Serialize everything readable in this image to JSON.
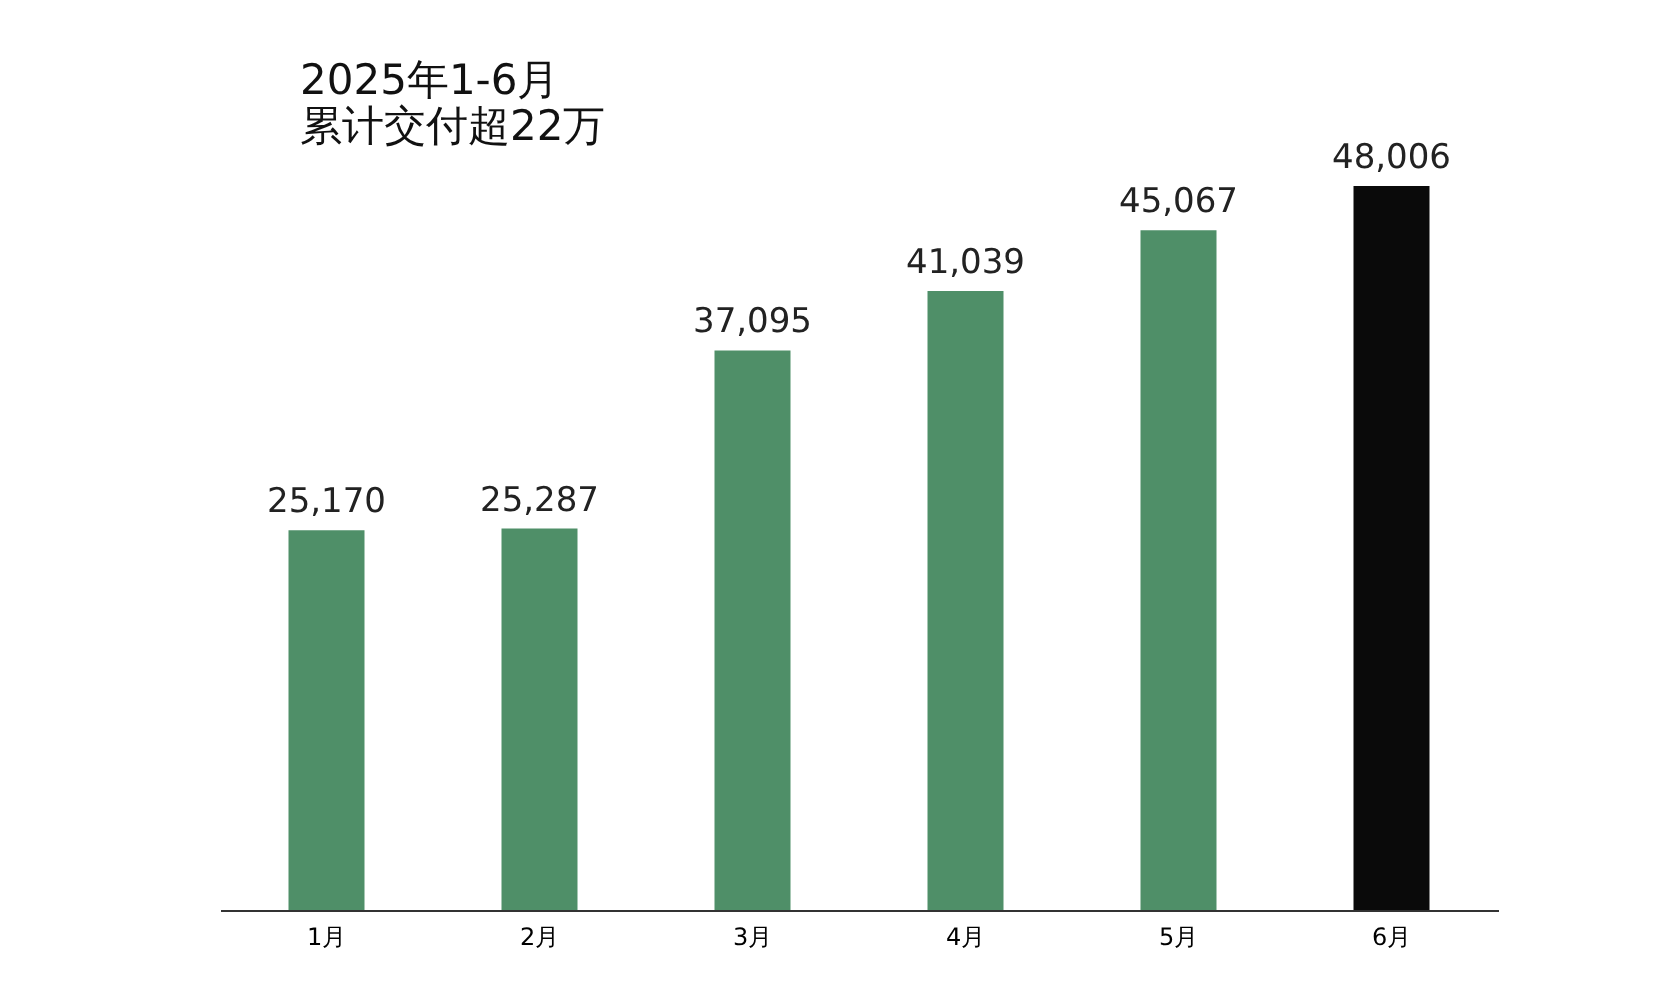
{
  "chart_data": {
    "type": "bar",
    "title": [
      "2025年1-6月",
      "累计交付超22万"
    ],
    "categories": [
      "1月",
      "2月",
      "3月",
      "4月",
      "5月",
      "6月"
    ],
    "values": [
      25170,
      25287,
      37095,
      41039,
      45067,
      48006
    ],
    "value_labels": [
      "25,170",
      "25,287",
      "37,095",
      "41,039",
      "45,067",
      "48,006"
    ],
    "colors": [
      "#4f8f68",
      "#4f8f68",
      "#4f8f68",
      "#4f8f68",
      "#4f8f68",
      "#0a0a0a"
    ]
  }
}
